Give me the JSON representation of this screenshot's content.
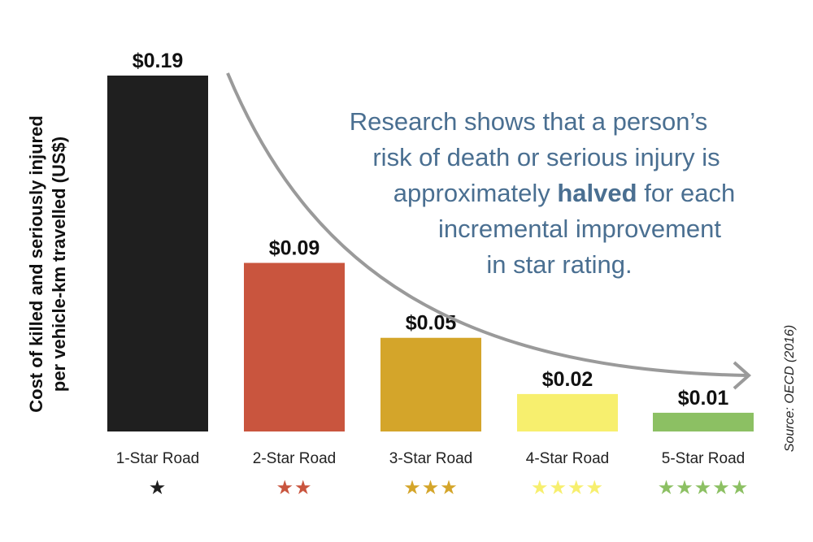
{
  "chart_data": {
    "type": "bar",
    "categories": [
      "1-Star Road",
      "2-Star Road",
      "3-Star Road",
      "4-Star Road",
      "5-Star Road"
    ],
    "values": [
      0.19,
      0.09,
      0.05,
      0.02,
      0.01
    ],
    "value_labels": [
      "$0.19",
      "$0.09",
      "$0.05",
      "$0.02",
      "$0.01"
    ],
    "stars": [
      1,
      2,
      3,
      4,
      5
    ],
    "colors": [
      "#1f1f1f",
      "#c9553e",
      "#d4a52a",
      "#f7ef6e",
      "#8cc063"
    ],
    "star_colors": [
      "#1f1f1f",
      "#c9553e",
      "#d4a52a",
      "#f7ef6e",
      "#8cc063"
    ],
    "ylabel_lines": [
      "Cost of killed and seriously injured",
      "per vehicle-km travelled (US$)"
    ],
    "ylim": [
      0,
      0.19
    ],
    "grid": false,
    "legend": "none"
  },
  "annotation": {
    "line1": "Research shows that a person’s",
    "line2": "risk of death or serious injury is",
    "line3_pre": "approximately ",
    "line3_bold": "halved",
    "line3_post": " for each",
    "line4": "incremental improvement",
    "line5": "in star rating.",
    "arrow_color": "#9a9a9a"
  },
  "source": "Source: OECD (2016)"
}
